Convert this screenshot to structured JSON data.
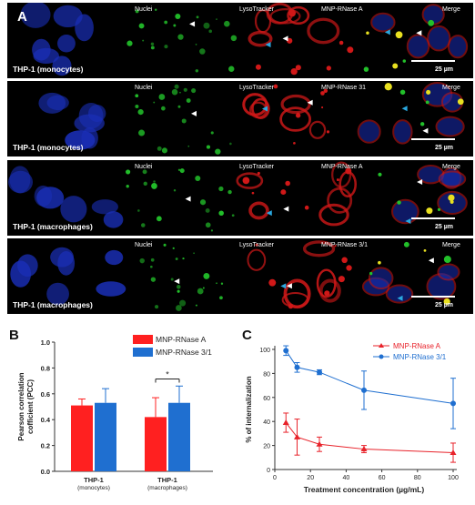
{
  "panels": {
    "a_letter": "A",
    "b_letter": "B",
    "c_letter": "C"
  },
  "micrographs": {
    "channels": [
      "Nuclei",
      "LysoTracker",
      "MNP-RNase A",
      "Merge"
    ],
    "rows": [
      {
        "cell_label": "THP-1 (monocytes)",
        "channels": [
          "Nuclei",
          "LysoTracker",
          "MNP-RNase A",
          "Merge"
        ],
        "scale": "25 µm"
      },
      {
        "cell_label": "THP-1 (monocytes)",
        "channels": [
          "Nuclei",
          "LysoTracker",
          "MNP-RNase 31",
          "Merge"
        ],
        "scale": "25 µm"
      },
      {
        "cell_label": "THP-1 (macrophages)",
        "channels": [
          "Nuclei",
          "LysoTracker",
          "MNP-RNase A",
          "Merge"
        ],
        "scale": "25 µm"
      },
      {
        "cell_label": "THP-1 (macrophages)",
        "channels": [
          "Nuclei",
          "LysoTracker",
          "MNP-RNase 3/1",
          "Merge"
        ],
        "scale": "25 µm"
      }
    ],
    "colors": {
      "nuclei": "#1a2fb8",
      "lyso": "#22c02a",
      "mnp": "#d01818",
      "merge_yellow": "#e8e020",
      "arrow_white": "#ffffff",
      "arrow_cyan": "#2aa8e0"
    }
  },
  "chart_data": [
    {
      "type": "bar",
      "panel": "B",
      "categories": [
        "THP-1\n(monocytes)",
        "THP-1\n(macrophages)"
      ],
      "category_lines": [
        [
          "THP-1",
          "(monocytes)"
        ],
        [
          "THP-1",
          "(macrophages)"
        ]
      ],
      "series": [
        {
          "name": "MNP-RNase A",
          "color": "#ff2020",
          "values": [
            0.51,
            0.42
          ],
          "errors": [
            0.05,
            0.15
          ]
        },
        {
          "name": "MNP-RNase 3/1",
          "color": "#1f6fd0",
          "values": [
            0.53,
            0.53
          ],
          "errors": [
            0.11,
            0.13
          ]
        }
      ],
      "ylabel": "Pearson correlation coefficient (PCC)",
      "ylabel_lines": [
        "Pearson correlation",
        "cofficient (PCC)"
      ],
      "ylim": [
        0.0,
        1.0
      ],
      "yticks": [
        "0.0",
        "0.2",
        "0.4",
        "0.6",
        "0.8",
        "1.0"
      ],
      "significance": "*",
      "legend": "top-right"
    },
    {
      "type": "line",
      "panel": "C",
      "x": [
        6.25,
        12.5,
        25,
        50,
        100
      ],
      "series": [
        {
          "name": "MNP-RNase A",
          "color": "#e8222a",
          "marker": "triangle",
          "values": [
            39,
            27,
            21,
            17,
            14
          ],
          "errors": [
            8,
            15,
            6,
            3,
            8
          ]
        },
        {
          "name": "MNP-RNase 3/1",
          "color": "#1f6fd0",
          "marker": "circle",
          "values": [
            99,
            85,
            81,
            66,
            55
          ],
          "errors": [
            4,
            4,
            2,
            16,
            21
          ]
        }
      ],
      "xlabel": "Treatment concentration (µg/mL)",
      "ylabel": "% of internalization",
      "xlim": [
        0,
        100
      ],
      "ylim": [
        0,
        100
      ],
      "xticks": [
        "0",
        "20",
        "40",
        "60",
        "80",
        "100"
      ],
      "yticks": [
        "0",
        "20",
        "40",
        "60",
        "80",
        "100"
      ],
      "legend": "top-right"
    }
  ]
}
